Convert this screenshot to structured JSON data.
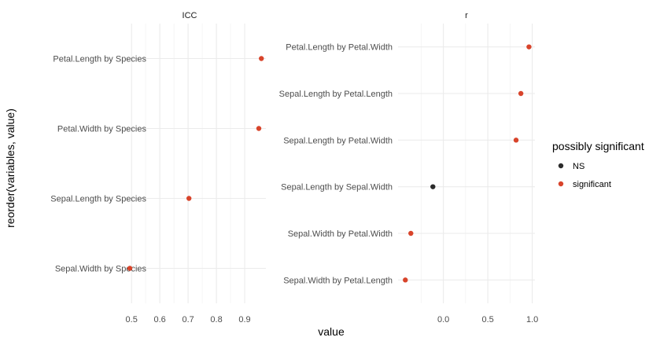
{
  "chart_data": {
    "type": "scatter",
    "xlabel": "value",
    "ylabel": "reorder(variables, value)",
    "legend": {
      "title": "possibly significant",
      "placement": "right",
      "entries": [
        {
          "label": "NS",
          "color": "#2b2b2b"
        },
        {
          "label": "significant",
          "color": "#d8442b"
        }
      ]
    },
    "grid": true,
    "panels": [
      {
        "strip": "ICC",
        "xlim": [
          0.48,
          0.975
        ],
        "xticks": [
          0.5,
          0.6,
          0.7,
          0.8,
          0.9
        ],
        "xtick_labels": [
          "0.5",
          "0.6",
          "0.7",
          "0.8",
          "0.9"
        ],
        "categories": [
          "Petal.Length by Species",
          "Petal.Width by Species",
          "Sepal.Length by Species",
          "Sepal.Width by Species"
        ],
        "points": [
          {
            "category": "Petal.Length by Species",
            "x": 0.959,
            "group": "significant"
          },
          {
            "category": "Petal.Width by Species",
            "x": 0.95,
            "group": "significant"
          },
          {
            "category": "Sepal.Length by Species",
            "x": 0.703,
            "group": "significant"
          },
          {
            "category": "Sepal.Width by Species",
            "x": 0.494,
            "group": "significant"
          }
        ]
      },
      {
        "strip": "r",
        "xlim": [
          -0.51,
          1.03
        ],
        "xticks": [
          0.0,
          0.5,
          1.0
        ],
        "xtick_labels": [
          "0.0",
          "0.5",
          "1.0"
        ],
        "categories": [
          "Petal.Length by Petal.Width",
          "Sepal.Length by Petal.Length",
          "Sepal.Length by Petal.Width",
          "Sepal.Length by Sepal.Width",
          "Sepal.Width by Petal.Width",
          "Sepal.Width by Petal.Length"
        ],
        "points": [
          {
            "category": "Petal.Length by Petal.Width",
            "x": 0.963,
            "group": "significant"
          },
          {
            "category": "Sepal.Length by Petal.Length",
            "x": 0.872,
            "group": "significant"
          },
          {
            "category": "Sepal.Length by Petal.Width",
            "x": 0.818,
            "group": "significant"
          },
          {
            "category": "Sepal.Length by Sepal.Width",
            "x": -0.118,
            "group": "NS"
          },
          {
            "category": "Sepal.Width by Petal.Width",
            "x": -0.366,
            "group": "significant"
          },
          {
            "category": "Sepal.Width by Petal.Length",
            "x": -0.428,
            "group": "significant"
          }
        ]
      }
    ]
  }
}
